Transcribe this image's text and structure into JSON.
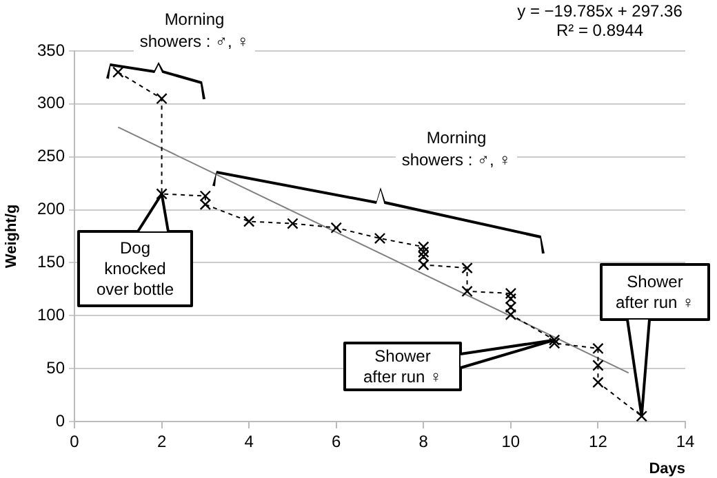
{
  "chart_data": {
    "type": "line",
    "xlabel": "Days",
    "ylabel": "Weight/g",
    "xlim": [
      0,
      14
    ],
    "xticks": [
      0,
      2,
      4,
      6,
      8,
      10,
      12,
      14
    ],
    "ylim": [
      0,
      350
    ],
    "yticks": [
      0,
      50,
      100,
      150,
      200,
      250,
      300,
      350
    ],
    "grid": "y",
    "legend": false,
    "series": [
      {
        "type": "line",
        "color": "#000000",
        "marker": "cross",
        "line_style": "dashed",
        "x": [
          1,
          2,
          2,
          3,
          3,
          4,
          5,
          6,
          7,
          8,
          8,
          8,
          8,
          9,
          9,
          10,
          10,
          10,
          10,
          11,
          11,
          12,
          12,
          12,
          13
        ],
        "values": [
          330,
          305,
          215,
          213,
          205,
          189,
          187,
          183,
          173,
          165,
          160,
          156,
          148,
          145,
          123,
          121,
          116,
          108,
          101,
          77,
          74,
          69,
          53,
          37,
          5
        ]
      },
      {
        "type": "line",
        "color": "#808080",
        "marker": "none",
        "line_style": "solid",
        "x": [
          1,
          12.7
        ],
        "values": [
          278,
          46
        ]
      }
    ],
    "annotations": [
      "Morning showers : ♂, ♀",
      "Morning showers : ♂, ♀",
      {
        "text": "Dog knocked over bottle",
        "x": 2,
        "y": 215
      },
      {
        "text": "Shower after run ♀",
        "x": 11,
        "y": 77
      },
      {
        "text": "Shower after run ♀",
        "x": 13,
        "y": 5
      },
      "y = −19.785x + 297.36",
      "R² = 0.8944"
    ]
  }
}
